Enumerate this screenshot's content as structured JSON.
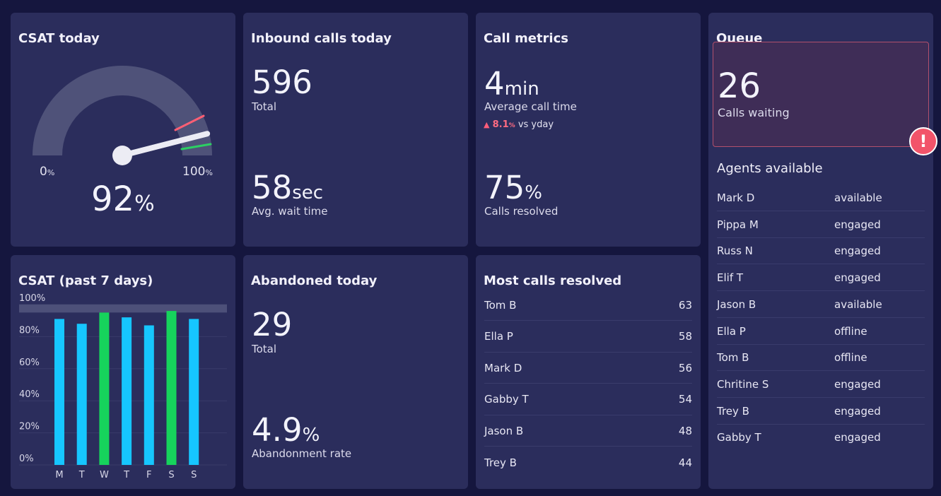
{
  "csat_today": {
    "title": "CSAT today",
    "min_label": "0",
    "max_label": "100",
    "label_unit": "%",
    "value": "92",
    "value_unit": "%",
    "gauge_value": 92
  },
  "inbound": {
    "title": "Inbound calls today",
    "total_value": "596",
    "total_label": "Total",
    "wait_value": "58",
    "wait_unit": "sec",
    "wait_label": "Avg. wait time"
  },
  "call_metrics": {
    "title": "Call metrics",
    "avg_value": "4",
    "avg_unit": "min",
    "avg_label": "Average call time",
    "delta_arrow": "▲",
    "delta_value": "8.1",
    "delta_unit": "%",
    "delta_label": "vs yday",
    "resolved_value": "75",
    "resolved_unit": "%",
    "resolved_label": "Calls resolved"
  },
  "queue": {
    "title": "Queue",
    "waiting_value": "26",
    "waiting_label": "Calls waiting",
    "alert_symbol": "!",
    "agents_title": "Agents available",
    "agents": [
      {
        "name": "Mark D",
        "status": "available"
      },
      {
        "name": "Pippa M",
        "status": "engaged"
      },
      {
        "name": "Russ N",
        "status": "engaged"
      },
      {
        "name": "Elif T",
        "status": "engaged"
      },
      {
        "name": "Jason B",
        "status": "available"
      },
      {
        "name": "Ella P",
        "status": "offline"
      },
      {
        "name": "Tom B",
        "status": "offline"
      },
      {
        "name": "Chritine S",
        "status": "engaged"
      },
      {
        "name": "Trey B",
        "status": "engaged"
      },
      {
        "name": "Gabby T",
        "status": "engaged"
      }
    ]
  },
  "csat_week": {
    "title": "CSAT (past 7 days)"
  },
  "abandoned": {
    "title": "Abandoned today",
    "total_value": "29",
    "total_label": "Total",
    "rate_value": "4.9",
    "rate_unit": "%",
    "rate_label": "Abandonment rate"
  },
  "resolved": {
    "title": "Most calls resolved",
    "rows": [
      {
        "name": "Tom B",
        "value": "63"
      },
      {
        "name": "Ella P",
        "value": "58"
      },
      {
        "name": "Mark D",
        "value": "56"
      },
      {
        "name": "Gabby T",
        "value": "54"
      },
      {
        "name": "Jason B",
        "value": "48"
      },
      {
        "name": "Trey B",
        "value": "44"
      }
    ]
  },
  "colors": {
    "bar_normal": "#16c6ff",
    "bar_highlight": "#16d35c",
    "target_band": "#4d5079",
    "alert": "#f2546a"
  },
  "chart_data": {
    "type": "bar",
    "title": "CSAT (past 7 days)",
    "categories": [
      "M",
      "T",
      "W",
      "T",
      "F",
      "S",
      "S"
    ],
    "values": [
      91,
      88,
      95,
      92,
      87,
      96,
      91
    ],
    "highlight": [
      false,
      false,
      true,
      false,
      false,
      true,
      false
    ],
    "ytick_labels": [
      "0%",
      "20%",
      "40%",
      "60%",
      "80%",
      "100%"
    ],
    "yticks": [
      0,
      20,
      40,
      60,
      80,
      100
    ],
    "ylim": [
      0,
      100
    ],
    "target_band": [
      95,
      100
    ],
    "grid": true
  }
}
